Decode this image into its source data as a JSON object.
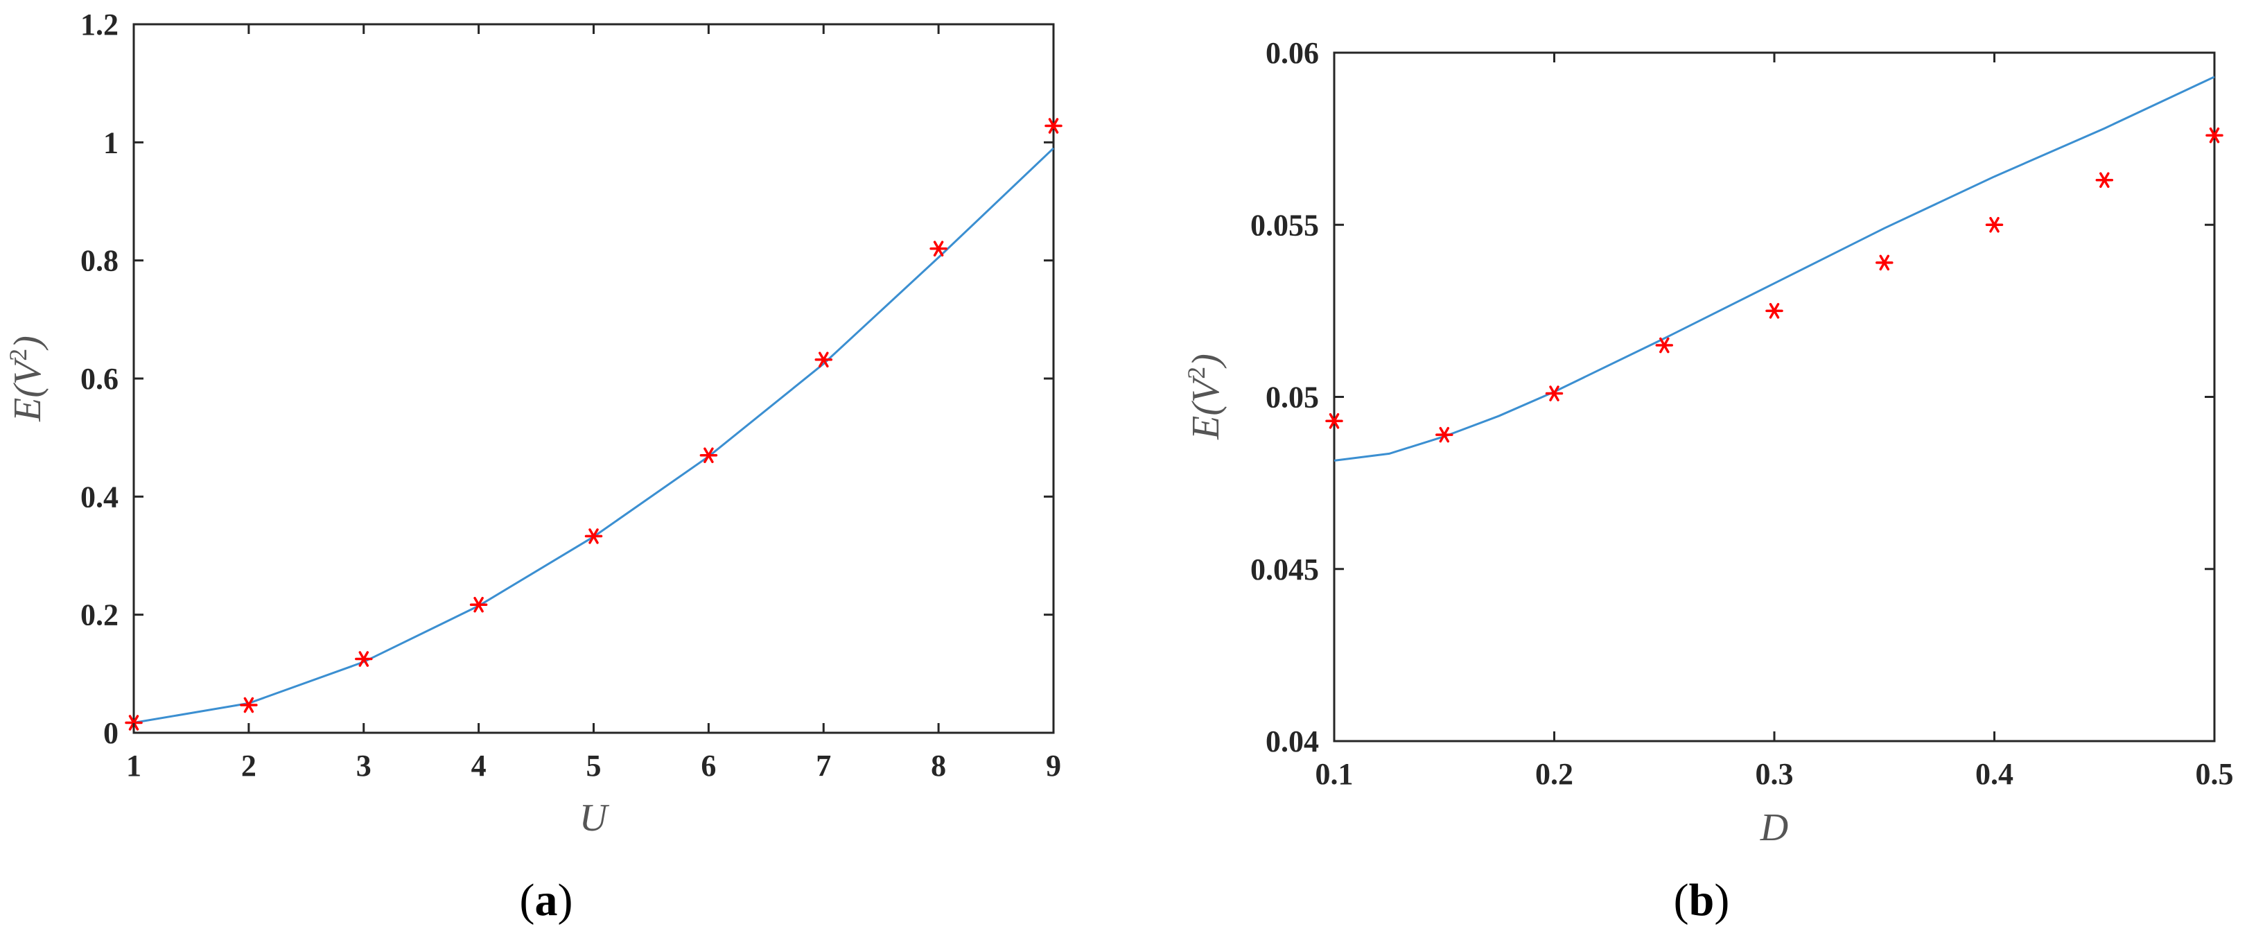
{
  "chart_data": [
    {
      "type": "line",
      "panel_label": "a",
      "xlabel": "U",
      "ylabel_base": "E(V",
      "ylabel_sup": "2",
      "ylabel_close": ")",
      "xlim": [
        1,
        9
      ],
      "ylim": [
        0,
        1.2
      ],
      "xticks": [
        "1",
        "2",
        "3",
        "4",
        "5",
        "6",
        "7",
        "8",
        "9"
      ],
      "yticks": [
        "0",
        "0.2",
        "0.4",
        "0.6",
        "0.8",
        "1",
        "1.2"
      ],
      "grid": false,
      "line_color": "#3b8fd1",
      "marker_color": "#ff0000",
      "series": [
        {
          "kind": "line",
          "x": [
            1,
            2,
            3,
            4,
            5,
            6,
            7,
            8,
            9
          ],
          "y": [
            0.017,
            0.05,
            0.12,
            0.215,
            0.332,
            0.468,
            0.625,
            0.805,
            0.99
          ]
        },
        {
          "kind": "markers",
          "marker": "asterisk",
          "x": [
            1,
            2,
            3,
            4,
            5,
            6,
            7,
            8,
            9
          ],
          "y": [
            0.017,
            0.047,
            0.125,
            0.217,
            0.333,
            0.47,
            0.632,
            0.82,
            1.028
          ]
        }
      ]
    },
    {
      "type": "line",
      "panel_label": "b",
      "xlabel": "D",
      "ylabel_base": "E(V",
      "ylabel_sup": "2",
      "ylabel_close": ")",
      "xlim": [
        0.1,
        0.5
      ],
      "ylim": [
        0.04,
        0.06
      ],
      "xticks": [
        "0.1",
        "0.2",
        "0.3",
        "0.4",
        "0.5"
      ],
      "yticks": [
        "0.04",
        "0.045",
        "0.05",
        "0.055",
        "0.06"
      ],
      "grid": false,
      "line_color": "#3b8fd1",
      "marker_color": "#ff0000",
      "series": [
        {
          "kind": "line",
          "x": [
            0.1,
            0.125,
            0.15,
            0.175,
            0.2,
            0.25,
            0.3,
            0.35,
            0.4,
            0.45,
            0.5
          ],
          "y": [
            0.04815,
            0.04835,
            0.04885,
            0.04945,
            0.05015,
            0.0517,
            0.0533,
            0.0549,
            0.0564,
            0.0578,
            0.0593
          ]
        },
        {
          "kind": "markers",
          "marker": "asterisk",
          "x": [
            0.1,
            0.15,
            0.2,
            0.25,
            0.3,
            0.35,
            0.4,
            0.45,
            0.5
          ],
          "y": [
            0.0493,
            0.0489,
            0.0501,
            0.0515,
            0.0525,
            0.0539,
            0.055,
            0.0563,
            0.0576
          ]
        }
      ]
    }
  ]
}
